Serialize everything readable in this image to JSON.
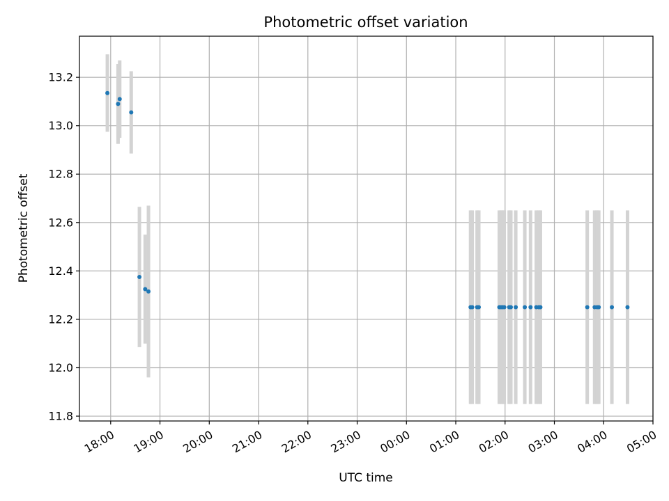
{
  "chart_data": {
    "type": "scatter",
    "title": "Photometric offset variation",
    "xlabel": "UTC time",
    "ylabel": "Photometric offset",
    "xlim": [
      "17:22",
      "05:00"
    ],
    "ylim": [
      11.78,
      13.37
    ],
    "x_ticks": [
      "18:00",
      "19:00",
      "20:00",
      "21:00",
      "22:00",
      "23:00",
      "00:00",
      "01:00",
      "02:00",
      "03:00",
      "04:00",
      "05:00"
    ],
    "y_ticks": [
      11.8,
      12.0,
      12.2,
      12.4,
      12.6,
      12.8,
      13.0,
      13.2
    ],
    "grid": true,
    "colors": {
      "points": "#1f77b4",
      "error_bars": "#d3d3d3",
      "grid": "#b0b0b0"
    },
    "points": [
      {
        "x": "17:56",
        "y": 13.135,
        "err": 0.16
      },
      {
        "x": "18:09",
        "y": 13.09,
        "err": 0.165
      },
      {
        "x": "18:11",
        "y": 13.11,
        "err": 0.16
      },
      {
        "x": "18:25",
        "y": 13.055,
        "err": 0.17
      },
      {
        "x": "18:35",
        "y": 12.375,
        "err": 0.29
      },
      {
        "x": "18:42",
        "y": 12.325,
        "err": 0.225
      },
      {
        "x": "18:46",
        "y": 12.315,
        "err": 0.355
      },
      {
        "x": "01:18",
        "y": 12.25,
        "err": 0.4
      },
      {
        "x": "01:20",
        "y": 12.25,
        "err": 0.4
      },
      {
        "x": "01:26",
        "y": 12.25,
        "err": 0.4
      },
      {
        "x": "01:28",
        "y": 12.25,
        "err": 0.4
      },
      {
        "x": "01:53",
        "y": 12.25,
        "err": 0.4
      },
      {
        "x": "01:55",
        "y": 12.25,
        "err": 0.4
      },
      {
        "x": "01:57",
        "y": 12.25,
        "err": 0.4
      },
      {
        "x": "01:59",
        "y": 12.25,
        "err": 0.4
      },
      {
        "x": "02:05",
        "y": 12.25,
        "err": 0.4
      },
      {
        "x": "02:07",
        "y": 12.25,
        "err": 0.4
      },
      {
        "x": "02:13",
        "y": 12.25,
        "err": 0.4
      },
      {
        "x": "02:24",
        "y": 12.25,
        "err": 0.4
      },
      {
        "x": "02:31",
        "y": 12.25,
        "err": 0.4
      },
      {
        "x": "02:38",
        "y": 12.25,
        "err": 0.4
      },
      {
        "x": "02:41",
        "y": 12.25,
        "err": 0.4
      },
      {
        "x": "02:43",
        "y": 12.25,
        "err": 0.4
      },
      {
        "x": "03:40",
        "y": 12.25,
        "err": 0.4
      },
      {
        "x": "03:49",
        "y": 12.25,
        "err": 0.4
      },
      {
        "x": "03:52",
        "y": 12.25,
        "err": 0.4
      },
      {
        "x": "03:54",
        "y": 12.25,
        "err": 0.4
      },
      {
        "x": "04:10",
        "y": 12.25,
        "err": 0.4
      },
      {
        "x": "04:29",
        "y": 12.25,
        "err": 0.4
      }
    ]
  }
}
